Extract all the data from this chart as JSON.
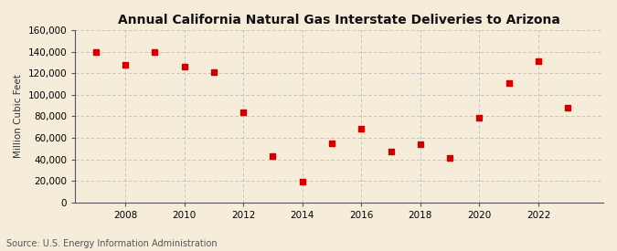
{
  "title": "Annual California Natural Gas Interstate Deliveries to Arizona",
  "ylabel": "Million Cubic Feet",
  "source": "Source: U.S. Energy Information Administration",
  "years": [
    2007,
    2008,
    2009,
    2010,
    2011,
    2012,
    2013,
    2014,
    2015,
    2016,
    2017,
    2018,
    2019,
    2020,
    2021,
    2022,
    2023
  ],
  "values": [
    140000,
    128000,
    140000,
    126000,
    121000,
    84000,
    43000,
    19000,
    55000,
    68000,
    47000,
    54000,
    41000,
    79000,
    111000,
    131000,
    88000
  ],
  "marker_color": "#cc0000",
  "marker": "s",
  "marker_size": 4,
  "background_color": "#f5edda",
  "plot_bg_color": "#f5edda",
  "grid_color": "#bbbbbb",
  "ylim": [
    0,
    160000
  ],
  "ytick_step": 20000,
  "xlim": [
    2006.3,
    2024.2
  ],
  "xticks": [
    2008,
    2010,
    2012,
    2014,
    2016,
    2018,
    2020,
    2022
  ],
  "title_fontsize": 10,
  "ylabel_fontsize": 7.5,
  "tick_fontsize": 7.5,
  "source_fontsize": 7,
  "title_fontweight": "bold"
}
